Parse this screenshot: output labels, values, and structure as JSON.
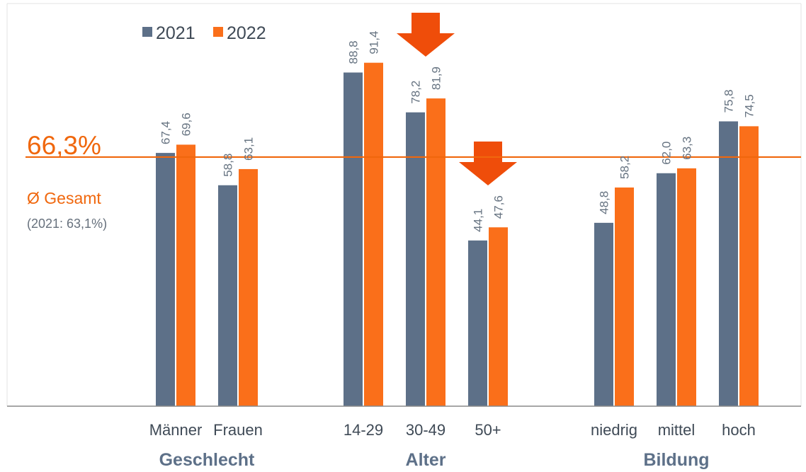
{
  "chart_data": {
    "type": "bar",
    "categories": [
      "Männer",
      "Frauen",
      "14-29",
      "30-49",
      "50+",
      "niedrig",
      "mittel",
      "hoch"
    ],
    "groups": [
      {
        "label": "Geschlecht",
        "categories": [
          "Männer",
          "Frauen"
        ]
      },
      {
        "label": "Alter",
        "categories": [
          "14-29",
          "30-49",
          "50+"
        ]
      },
      {
        "label": "Bildung",
        "categories": [
          "niedrig",
          "mittel",
          "hoch"
        ]
      }
    ],
    "series": [
      {
        "name": "2021",
        "color": "#5d7088",
        "values": [
          67.4,
          58.8,
          88.8,
          78.2,
          44.1,
          48.8,
          62.0,
          75.8
        ]
      },
      {
        "name": "2022",
        "color": "#fa6f1a",
        "values": [
          69.6,
          63.1,
          91.4,
          81.9,
          47.6,
          58.2,
          63.3,
          74.5
        ]
      }
    ],
    "value_labels": {
      "2021": [
        "67,4",
        "58,8",
        "88,8",
        "78,2",
        "44,1",
        "48,8",
        "62,0",
        "75,8"
      ],
      "2022": [
        "69,6",
        "63,1",
        "91,4",
        "81,9",
        "47,6",
        "58,2",
        "63,3",
        "74,5"
      ]
    },
    "reference_line": {
      "value": 66.3,
      "value_label": "66,3%",
      "label": "Ø Gesamt",
      "previous_label": "(2021: 63,1%)",
      "color": "#f0670d"
    },
    "highlight_arrows": [
      "30-49",
      "50+"
    ],
    "ylim": [
      0,
      100
    ],
    "legend_position": "top-left",
    "grid": false,
    "title": "",
    "xlabel": "",
    "ylabel": ""
  }
}
